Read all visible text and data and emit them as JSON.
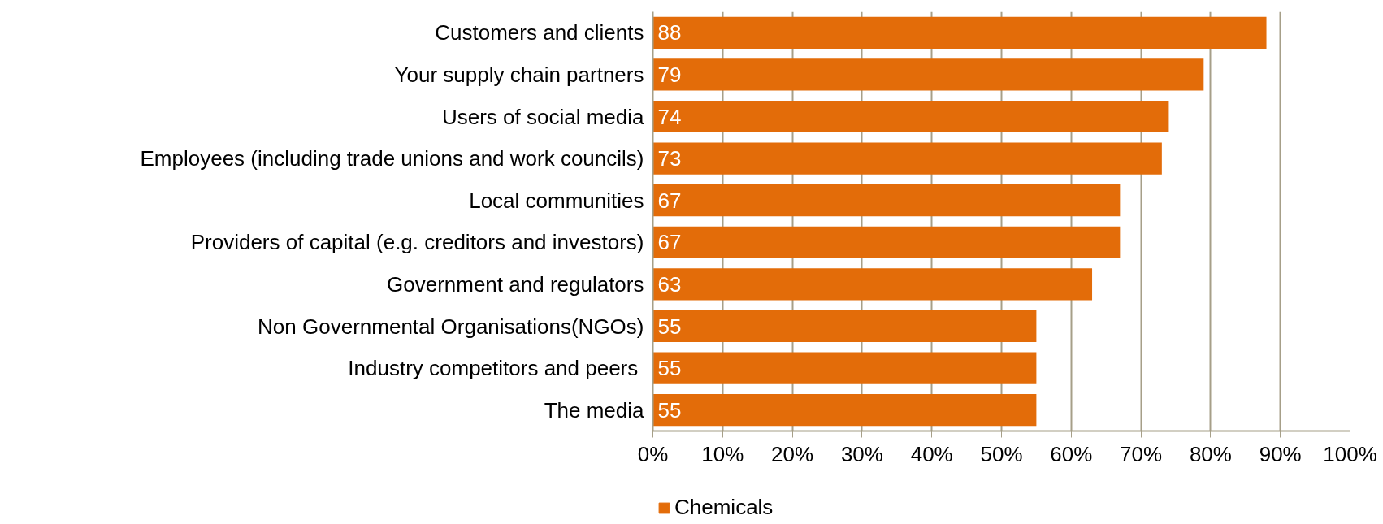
{
  "chart_data": {
    "type": "bar",
    "orientation": "horizontal",
    "categories": [
      "Customers and clients",
      "Your supply chain partners",
      "Users of social media",
      "Employees (including trade unions and work councils)",
      "Local communities",
      "Providers of capital (e.g. creditors and investors)",
      "Government and regulators",
      "Non Governmental Organisations(NGOs)",
      "Industry competitors and peers ",
      "The media"
    ],
    "series": [
      {
        "name": "Chemicals",
        "color": "#e36c09",
        "values": [
          88,
          79,
          74,
          73,
          67,
          67,
          63,
          55,
          55,
          55
        ]
      }
    ],
    "xlim": [
      0,
      100
    ],
    "xticks": [
      {
        "value": 0,
        "label": "0%"
      },
      {
        "value": 10,
        "label": "10%"
      },
      {
        "value": 20,
        "label": "20%"
      },
      {
        "value": 30,
        "label": "30%"
      },
      {
        "value": 40,
        "label": "40%"
      },
      {
        "value": 50,
        "label": "50%"
      },
      {
        "value": 60,
        "label": "60%"
      },
      {
        "value": 70,
        "label": "70%"
      },
      {
        "value": 80,
        "label": "80%"
      },
      {
        "value": 90,
        "label": "90%"
      },
      {
        "value": 100,
        "label": "100%"
      }
    ],
    "grid": "x",
    "legend": "bottom",
    "data_labels": true
  }
}
